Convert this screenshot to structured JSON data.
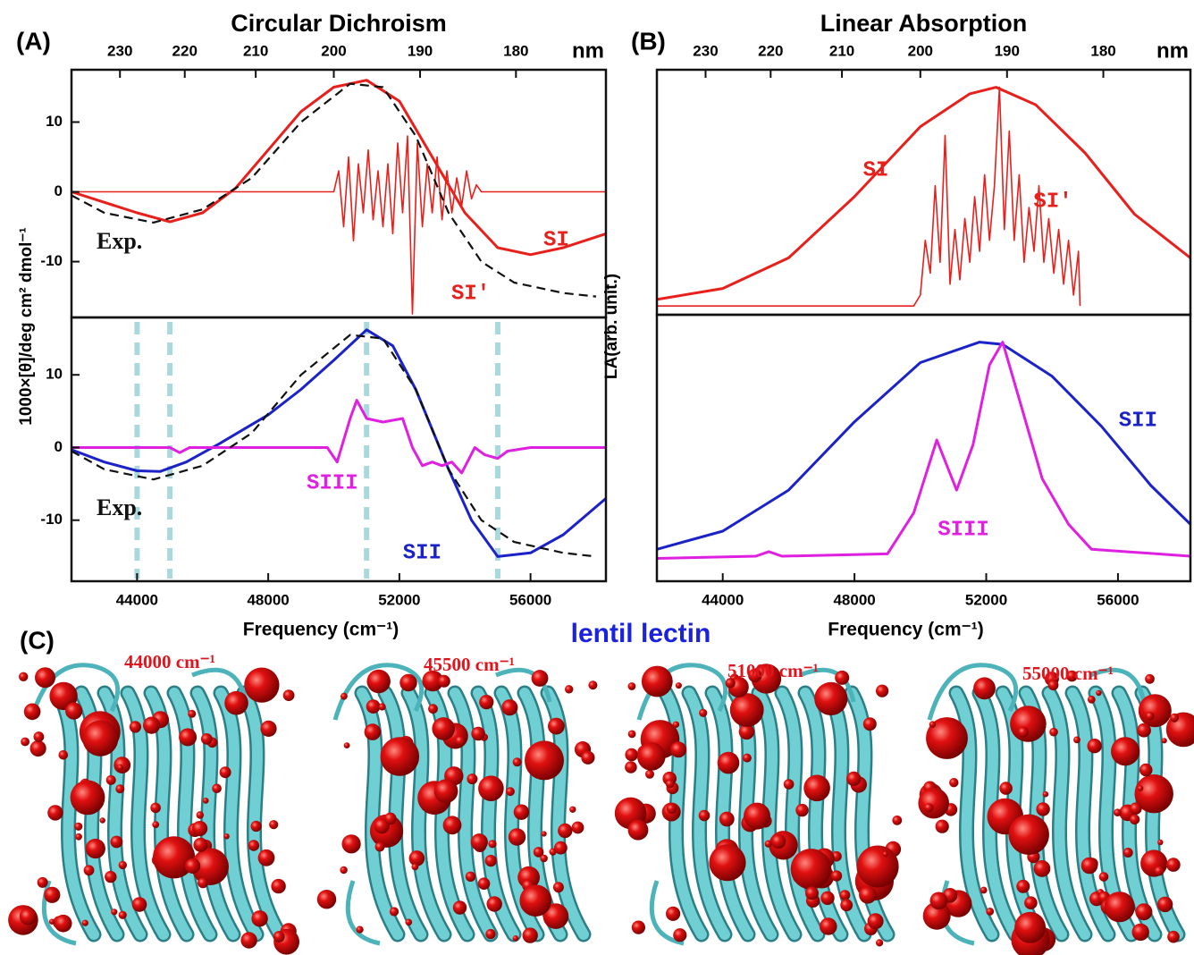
{
  "chart_data": [
    {
      "type": "line",
      "panel": "(A)",
      "title": "Circular Dichroism",
      "ylabel": "1000×[θ]/deg cm² dmol⁻¹",
      "xlim": [
        42000,
        58300
      ],
      "ylim": [
        -18,
        17.5
      ],
      "yticks": [
        10,
        0,
        -10
      ],
      "x2ticks": [
        230,
        220,
        210,
        200,
        190,
        180
      ],
      "x2label": "nm",
      "series": [
        {
          "name": "SI",
          "color": "#e8201c",
          "style": "solid",
          "x": [
            42000,
            44000,
            45000,
            46000,
            47000,
            48000,
            49000,
            50000,
            51000,
            52000,
            53000,
            54000,
            55000,
            56000,
            57000,
            58300
          ],
          "values": [
            0,
            -3,
            -4.3,
            -3,
            0.5,
            6,
            11.5,
            15,
            16,
            13,
            5,
            -3,
            -8,
            -9,
            -8,
            -6
          ]
        },
        {
          "name": "SI′",
          "color": "#e8201c",
          "style": "thin",
          "x": [
            42000,
            50000,
            50150,
            50300,
            50450,
            50600,
            50750,
            50900,
            51050,
            51200,
            51350,
            51500,
            51650,
            51800,
            51950,
            52100,
            52250,
            52400,
            52550,
            52700,
            52850,
            53000,
            53150,
            53300,
            53450,
            53600,
            53750,
            53900,
            54050,
            54200,
            54350,
            54500,
            58300
          ],
          "values": [
            0,
            0,
            3,
            -5,
            5,
            -7,
            4,
            -3,
            6,
            -4,
            3,
            -5,
            4,
            -6,
            7,
            -3,
            8,
            -17.5,
            7,
            -5,
            4,
            -3,
            5,
            -4,
            3,
            -3,
            2,
            -2,
            3,
            -1,
            1,
            0,
            0
          ]
        },
        {
          "name": "Exp.",
          "color": "#111111",
          "style": "dashed",
          "x": [
            42000,
            43000,
            44500,
            46000,
            47500,
            49000,
            50500,
            51500,
            52500,
            53500,
            54500,
            55500,
            57000,
            58000
          ],
          "values": [
            -0.5,
            -3,
            -4.4,
            -2.5,
            2,
            10,
            15.5,
            15,
            8,
            -3,
            -10,
            -13,
            -14.5,
            -15
          ]
        }
      ]
    },
    {
      "type": "line",
      "xlabel": "Frequency (cm⁻¹)",
      "xlim": [
        42000,
        58300
      ],
      "ylim": [
        -18.4,
        17.9
      ],
      "yticks": [
        10,
        0,
        -10
      ],
      "xticks": [
        44000,
        48000,
        52000,
        56000
      ],
      "markers": [
        44000,
        45000,
        51000,
        55000
      ],
      "marker_color": "#a9d9dc",
      "series": [
        {
          "name": "SII",
          "color": "#1a22c8",
          "style": "solid",
          "x": [
            42000,
            43000,
            44000,
            44700,
            45500,
            46500,
            48000,
            49000,
            50000,
            51000,
            51800,
            52500,
            53500,
            54200,
            55000,
            56000,
            57000,
            58300
          ],
          "values": [
            -0.3,
            -2,
            -3.2,
            -3.3,
            -2,
            0.5,
            4.5,
            8,
            12,
            16.2,
            14,
            8,
            -3,
            -10,
            -15,
            -14.5,
            -12,
            -7
          ]
        },
        {
          "name": "SIII",
          "color": "#e020e0",
          "style": "solid",
          "x": [
            42000,
            45000,
            45300,
            45600,
            49800,
            50100,
            50500,
            50700,
            51000,
            51500,
            52100,
            52400,
            52700,
            53000,
            53300,
            53600,
            53900,
            54300,
            54600,
            55000,
            55300,
            56000,
            58300
          ],
          "values": [
            0,
            0,
            -0.7,
            0,
            0,
            -2,
            4,
            6.5,
            4,
            3.5,
            4,
            0,
            -2.5,
            -2,
            -2.5,
            -2,
            -3.5,
            0,
            -1,
            -1.5,
            -0.5,
            0,
            0
          ]
        },
        {
          "name": "Exp.",
          "color": "#111111",
          "style": "dashed",
          "x": [
            42000,
            43000,
            44500,
            46000,
            47500,
            49000,
            50500,
            51500,
            52500,
            53500,
            54500,
            55500,
            57000,
            58000
          ],
          "values": [
            -0.5,
            -3,
            -4.4,
            -2.5,
            2,
            10,
            15.5,
            15,
            8,
            -3,
            -10,
            -13,
            -14.5,
            -15
          ]
        }
      ]
    },
    {
      "type": "line",
      "panel": "(B)",
      "title": "Linear Absorption",
      "ylabel": "LA(arb. unit.)",
      "xlim": [
        42000,
        58200
      ],
      "ylim": [
        -0.04,
        1.08
      ],
      "x2ticks": [
        230,
        220,
        210,
        200,
        190,
        180
      ],
      "x2label": "nm",
      "series": [
        {
          "name": "SI",
          "color": "#e8201c",
          "style": "solid",
          "x": [
            42000,
            44000,
            46000,
            48000,
            50000,
            51500,
            52300,
            53500,
            55000,
            56500,
            58200
          ],
          "values": [
            0.03,
            0.08,
            0.22,
            0.5,
            0.82,
            0.97,
            1.0,
            0.92,
            0.7,
            0.42,
            0.22
          ]
        },
        {
          "name": "SI′",
          "color": "#e8201c",
          "style": "thin",
          "x": [
            42000,
            49800,
            50000,
            50150,
            50300,
            50450,
            50600,
            50750,
            50900,
            51050,
            51200,
            51350,
            51500,
            51650,
            51800,
            51950,
            52100,
            52250,
            52400,
            52550,
            52700,
            52850,
            53000,
            53150,
            53300,
            53450,
            53600,
            53750,
            53900,
            54050,
            54200,
            54350,
            54500,
            54650,
            54800,
            54850
          ],
          "values": [
            0,
            0,
            0.05,
            0.3,
            0.15,
            0.55,
            0.2,
            0.78,
            0.1,
            0.35,
            0.12,
            0.4,
            0.2,
            0.5,
            0.25,
            0.6,
            0.3,
            0.55,
            1.0,
            0.35,
            0.8,
            0.3,
            0.6,
            0.2,
            0.45,
            0.25,
            0.55,
            0.2,
            0.4,
            0.15,
            0.35,
            0.1,
            0.3,
            0.05,
            0.25,
            0
          ]
        }
      ]
    },
    {
      "type": "line",
      "xlabel": "Frequency (cm⁻¹)",
      "xlim": [
        42000,
        58200
      ],
      "ylim": [
        -0.1,
        1.07
      ],
      "xticks": [
        44000,
        48000,
        52000,
        56000
      ],
      "series": [
        {
          "name": "SII",
          "color": "#1a22c8",
          "style": "solid",
          "x": [
            42000,
            44000,
            46000,
            48000,
            50000,
            51800,
            52500,
            54000,
            55500,
            57000,
            58200
          ],
          "values": [
            0.04,
            0.12,
            0.3,
            0.6,
            0.86,
            0.95,
            0.94,
            0.8,
            0.58,
            0.32,
            0.15
          ]
        },
        {
          "name": "SIII",
          "color": "#e020e0",
          "style": "solid",
          "x": [
            42000,
            45000,
            45400,
            45800,
            49000,
            49800,
            50500,
            51100,
            51600,
            52100,
            52500,
            53000,
            53700,
            54500,
            55200,
            58200
          ],
          "values": [
            0,
            0.01,
            0.03,
            0.01,
            0.02,
            0.2,
            0.52,
            0.3,
            0.5,
            0.85,
            0.95,
            0.7,
            0.35,
            0.15,
            0.04,
            0.01
          ]
        }
      ]
    }
  ],
  "panel_c": {
    "label": "(C)",
    "title": "lentil lectin",
    "images": [
      {
        "label": "44000 cm⁻¹"
      },
      {
        "label": "45500 cm⁻¹"
      },
      {
        "label": "51000 cm⁻¹"
      },
      {
        "label": "55000 cm⁻¹"
      }
    ]
  }
}
